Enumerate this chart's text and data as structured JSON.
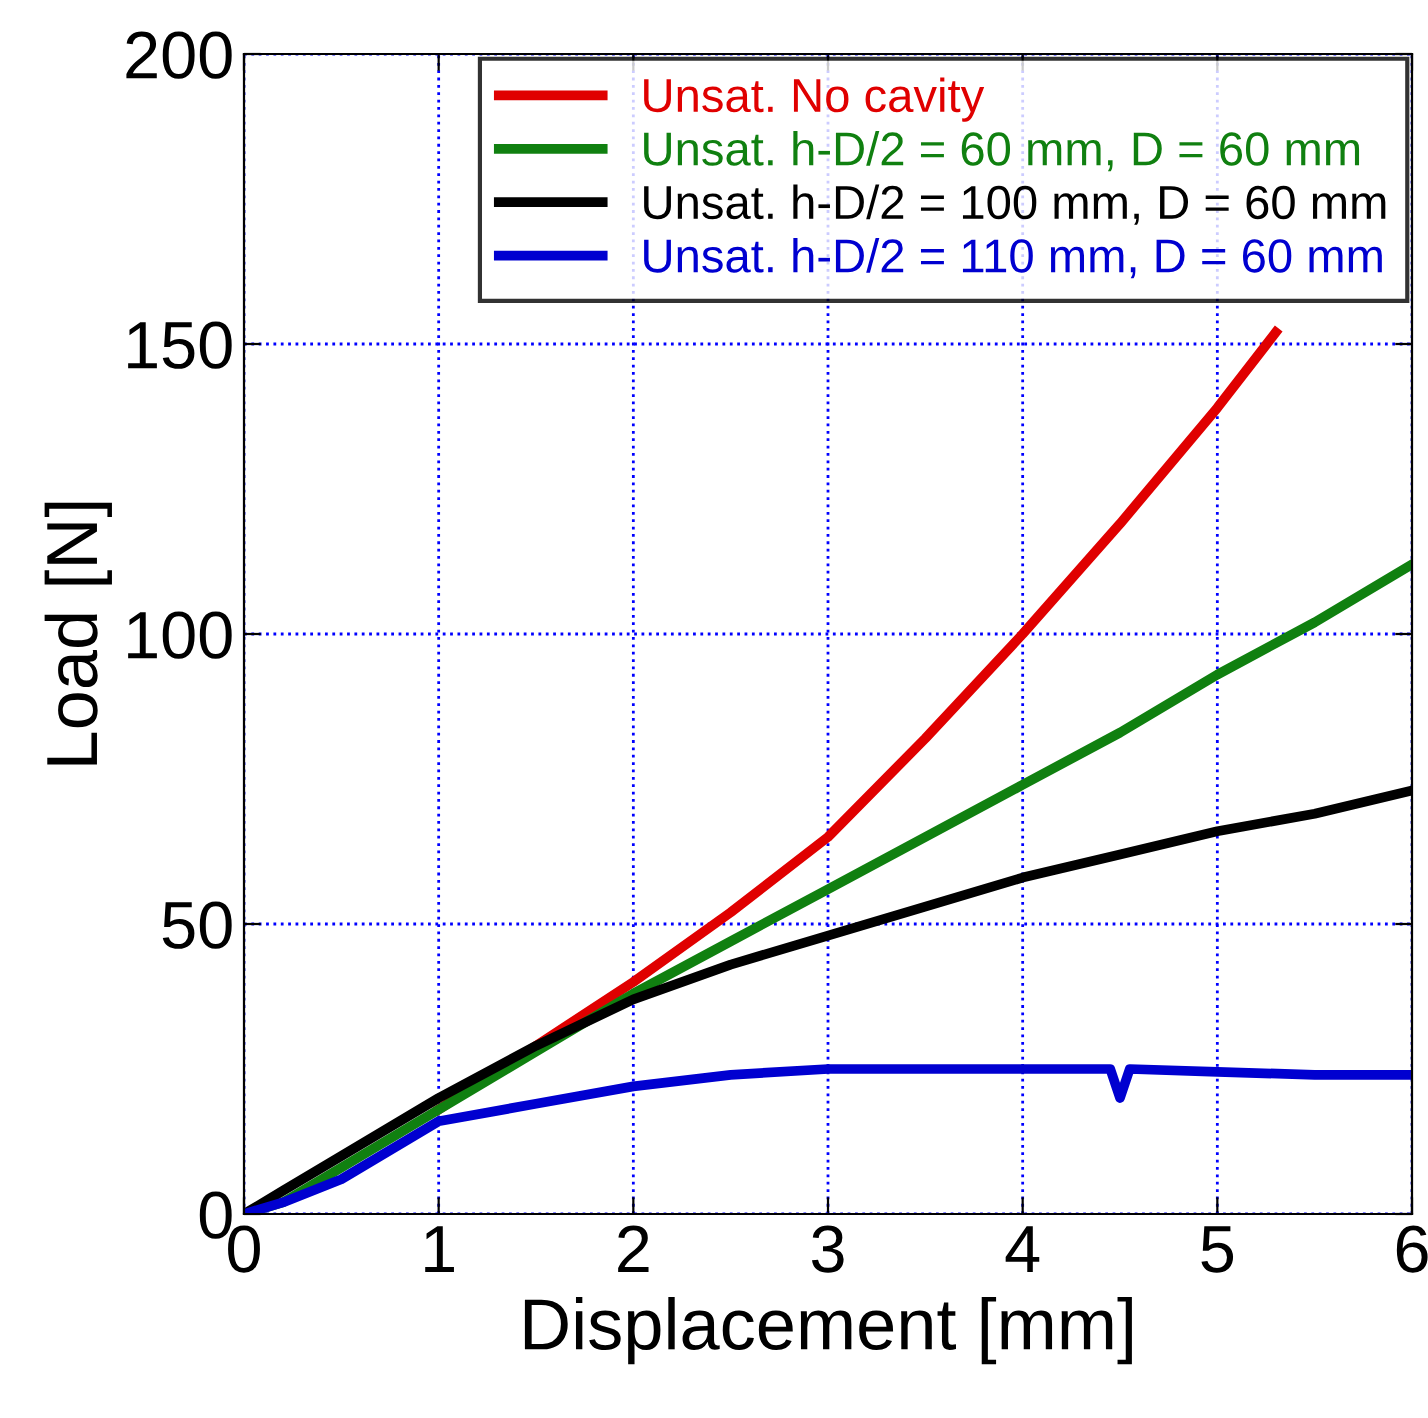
{
  "chart_data": {
    "type": "line",
    "xlabel": "Displacement [mm]",
    "ylabel": "Load [N]",
    "xlim": [
      0,
      6
    ],
    "ylim": [
      0,
      200
    ],
    "xticks": [
      0,
      1,
      2,
      3,
      4,
      5,
      6
    ],
    "yticks": [
      0,
      50,
      100,
      150,
      200
    ],
    "grid": true,
    "legend": "top right",
    "marker": "none",
    "line_style": "solid",
    "series": [
      {
        "name": "Unsat. No cavity",
        "color": "#e00000",
        "x": [
          1,
          1.5,
          2,
          2.5,
          3,
          3.5,
          4,
          4.5,
          5,
          5.3
        ],
        "values": [
          18,
          29,
          40,
          52,
          65,
          82,
          100,
          119,
          139,
          152
        ]
      },
      {
        "name": "Unsat. h-D/2 = 60 mm, D = 60 mm",
        "color": "#108010",
        "x": [
          0,
          0.2,
          0.5,
          1,
          1.5,
          2,
          2.5,
          3,
          3.5,
          4,
          4.5,
          5,
          5.5,
          6
        ],
        "values": [
          0,
          2,
          8,
          18,
          28,
          38,
          47,
          56,
          65,
          74,
          83,
          93,
          102,
          112
        ]
      },
      {
        "name": "Unsat. h-D/2 = 100 mm, D = 60 mm",
        "color": "#000000",
        "x": [
          0,
          0.2,
          0.5,
          1,
          1.5,
          2,
          2.5,
          3,
          3.5,
          4,
          4.5,
          5,
          5.5,
          6
        ],
        "values": [
          0,
          4,
          10,
          20,
          29,
          37,
          43,
          48,
          53,
          58,
          62,
          66,
          69,
          73
        ]
      },
      {
        "name": "Unsat. h-D/2 = 110 mm, D = 60 mm",
        "color": "#0000d0",
        "x": [
          0,
          0.2,
          0.5,
          1,
          1.5,
          2,
          2.5,
          3,
          3.5,
          4,
          4.45,
          4.5,
          4.55,
          5,
          5.5,
          6
        ],
        "values": [
          0,
          2,
          6,
          16,
          19,
          22,
          24,
          25,
          25,
          25,
          25,
          20,
          25,
          24.5,
          24,
          24
        ]
      }
    ]
  }
}
